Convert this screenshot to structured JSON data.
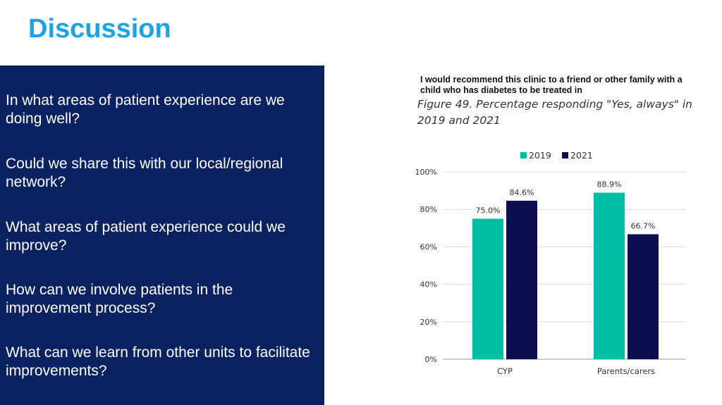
{
  "slide": {
    "title": "Discussion",
    "questions": [
      "In what areas of patient experience are we doing well?",
      "Could we share this with our local/regional network?",
      "What areas of patient experience could we improve?",
      "How can we involve patients in the improvement process?",
      "What can we learn from other units to facilitate improvements?"
    ]
  },
  "colors": {
    "panel": "#0b2260",
    "title": "#1aa3e8",
    "series_2019": "#00bfa5",
    "series_2021": "#0d0d52"
  },
  "chart_data": {
    "type": "bar",
    "title": "I would recommend this clinic to a friend or other family with a child who has diabetes to be treated in",
    "subtitle": "Figure 49. Percentage responding \"Yes, always\" in 2019 and 2021",
    "categories": [
      "CYP",
      "Parents/carers"
    ],
    "series": [
      {
        "name": "2019",
        "values": [
          75.0,
          88.9
        ],
        "labels": [
          "75.0%",
          "88.9%"
        ],
        "color": "#00bfa5"
      },
      {
        "name": "2021",
        "values": [
          84.6,
          66.7
        ],
        "labels": [
          "84.6%",
          "66.7%"
        ],
        "color": "#0d0d52"
      }
    ],
    "yticks": [
      "0%",
      "20%",
      "40%",
      "60%",
      "80%",
      "100%"
    ],
    "ylim": [
      0,
      100
    ],
    "grid": true,
    "legend": "top"
  }
}
